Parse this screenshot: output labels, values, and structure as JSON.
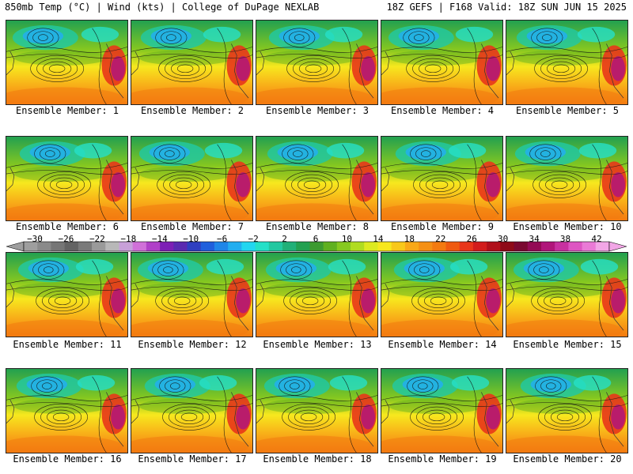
{
  "header": {
    "left": "850mb Temp (°C) | Wind (kts) | College of DuPage NEXLAB",
    "right": "18Z GEFS | F168 Valid: 18Z SUN JUN 15 2025"
  },
  "panels": [
    {
      "label": "Ensemble Member: 1"
    },
    {
      "label": "Ensemble Member: 2"
    },
    {
      "label": "Ensemble Member: 3"
    },
    {
      "label": "Ensemble Member: 4"
    },
    {
      "label": "Ensemble Member: 5"
    },
    {
      "label": "Ensemble Member: 6"
    },
    {
      "label": "Ensemble Member: 7"
    },
    {
      "label": "Ensemble Member: 8"
    },
    {
      "label": "Ensemble Member: 9"
    },
    {
      "label": "Ensemble Member: 10"
    },
    {
      "label": "Ensemble Member: 11"
    },
    {
      "label": "Ensemble Member: 12"
    },
    {
      "label": "Ensemble Member: 13"
    },
    {
      "label": "Ensemble Member: 14"
    },
    {
      "label": "Ensemble Member: 15"
    },
    {
      "label": "Ensemble Member: 16"
    },
    {
      "label": "Ensemble Member: 17"
    },
    {
      "label": "Ensemble Member: 18"
    },
    {
      "label": "Ensemble Member: 19"
    },
    {
      "label": "Ensemble Member: 20"
    }
  ],
  "colorbar": {
    "ticks": [
      "-30",
      "-26",
      "-22",
      "-18",
      "-14",
      "-10",
      "-6",
      "-2",
      "2",
      "6",
      "10",
      "14",
      "18",
      "22",
      "26",
      "30",
      "34",
      "38",
      "42"
    ],
    "colors": [
      "#9e9e9e",
      "#8a8a8a",
      "#767676",
      "#636363",
      "#7a7a7a",
      "#9a9a9a",
      "#b8b8b8",
      "#c8a0d8",
      "#d070d8",
      "#b040c8",
      "#7d1fb5",
      "#5a2ab0",
      "#2f3fc0",
      "#1f5fdc",
      "#1f86e8",
      "#22aef0",
      "#22d6f0",
      "#25e0c8",
      "#22c8a0",
      "#20b078",
      "#22a050",
      "#3c9a30",
      "#5fb020",
      "#86c820",
      "#b0dc20",
      "#dcea20",
      "#f7e81e",
      "#f8c81a",
      "#f8a818",
      "#f59014",
      "#f37a10",
      "#ef5a10",
      "#e8361a",
      "#d21c1c",
      "#b00f1a",
      "#8e0a18",
      "#7a0830",
      "#930a55",
      "#b0157a",
      "#c830a0",
      "#dd55c2",
      "#ea7ad6",
      "#f2a6e6"
    ]
  }
}
